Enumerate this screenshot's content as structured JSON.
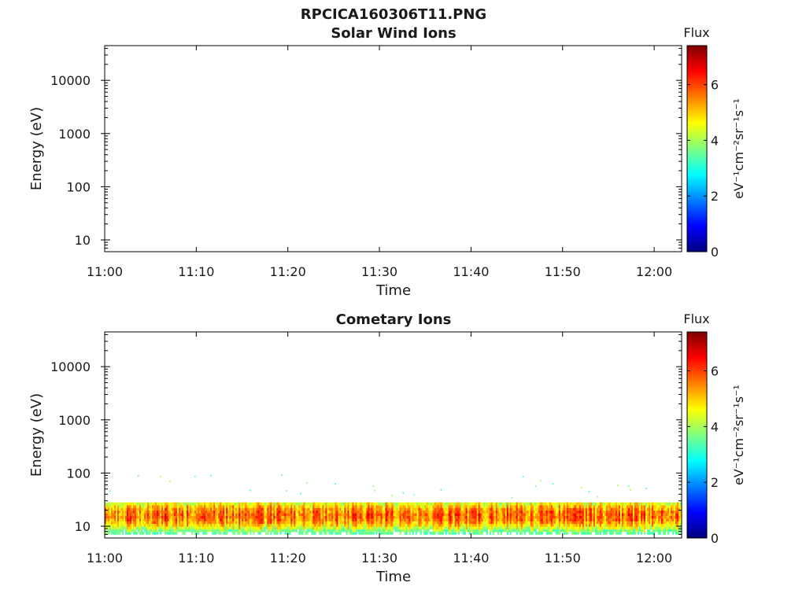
{
  "figure": {
    "title": "RPCICA160306T11.PNG"
  },
  "colormap": [
    "#00007f",
    "#0000ff",
    "#007fff",
    "#00ffff",
    "#7fff7f",
    "#ffff00",
    "#ff7f00",
    "#ff0000",
    "#7f0000"
  ],
  "chart_data": [
    {
      "type": "heatmap",
      "title": "Solar Wind Ions",
      "xlabel": "Time",
      "ylabel": "Energy (eV)",
      "y_scale": "log",
      "x_ticks": [
        "11:00",
        "11:10",
        "11:20",
        "11:30",
        "11:40",
        "11:50",
        "12:00"
      ],
      "y_ticks": [
        "10",
        "100",
        "1000",
        "10000"
      ],
      "xlim": [
        "11:00",
        "12:03"
      ],
      "ylim": [
        6,
        45000
      ],
      "colorbar": {
        "label": "Flux",
        "unit": "eV⁻¹cm⁻²sr⁻¹s⁻¹",
        "ticks": [
          "0",
          "2",
          "4",
          "6"
        ],
        "range": [
          0,
          7.4
        ]
      },
      "bands": []
    },
    {
      "type": "heatmap",
      "title": "Cometary Ions",
      "xlabel": "Time",
      "ylabel": "Energy (eV)",
      "y_scale": "log",
      "x_ticks": [
        "11:00",
        "11:10",
        "11:20",
        "11:30",
        "11:40",
        "11:50",
        "12:00"
      ],
      "y_ticks": [
        "10",
        "100",
        "1000",
        "10000"
      ],
      "xlim": [
        "11:00",
        "12:03"
      ],
      "ylim": [
        6,
        45000
      ],
      "colorbar": {
        "label": "Flux",
        "unit": "eV⁻¹cm⁻²sr⁻¹s⁻¹",
        "ticks": [
          "0",
          "2",
          "4",
          "6"
        ],
        "range": [
          0,
          7.4
        ]
      },
      "bands": [
        {
          "time_start": "11:00",
          "time_end": "12:03",
          "energy_min_ev": 7,
          "energy_max_ev": 28,
          "peak_energy_ev": 16,
          "peak_flux": 6.5
        }
      ]
    }
  ]
}
